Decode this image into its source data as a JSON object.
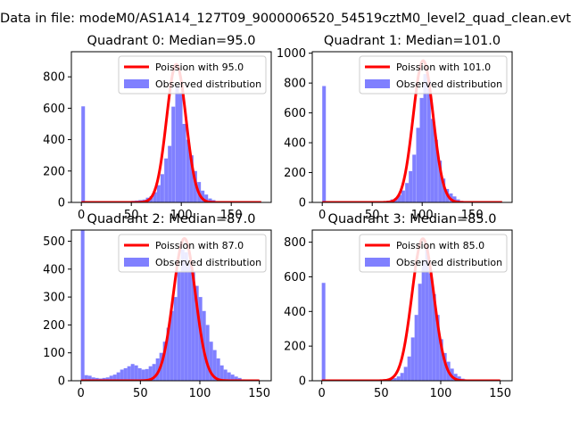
{
  "figure": {
    "suptitle": "Data in file: modeM0/AS1A14_127T09_9000006520_54519cztM0_level2_quad_clean.evt"
  },
  "chart_data": [
    {
      "type": "bar",
      "title": "Quadrant 0: Median=95.0",
      "xlim": [
        -10,
        190
      ],
      "ylim": [
        0,
        960
      ],
      "xticks": [
        0,
        50,
        100,
        150
      ],
      "yticks": [
        0,
        200,
        400,
        600,
        800
      ],
      "legend": {
        "position": "top-right",
        "entries": [
          "Poission with 95.0",
          "Observed distribution"
        ]
      },
      "colors": {
        "hist": "#8080ff",
        "fit": "#ff0000"
      },
      "hist_bin_width": 3.6,
      "hist_bins": [
        [
          0,
          612
        ],
        [
          3.6,
          3
        ],
        [
          7.2,
          2
        ],
        [
          50,
          10
        ],
        [
          53.6,
          12
        ],
        [
          57.2,
          15
        ],
        [
          61,
          18
        ],
        [
          64.6,
          30
        ],
        [
          68.2,
          40
        ],
        [
          72,
          65
        ],
        [
          75.6,
          110
        ],
        [
          79.2,
          180
        ],
        [
          83,
          280
        ],
        [
          86.6,
          360
        ],
        [
          90.2,
          610
        ],
        [
          94,
          740
        ],
        [
          97.6,
          700
        ],
        [
          101.2,
          500
        ],
        [
          105,
          400
        ],
        [
          108.6,
          300
        ],
        [
          112.2,
          200
        ],
        [
          116,
          130
        ],
        [
          119.6,
          75
        ],
        [
          123.2,
          50
        ],
        [
          127,
          25
        ],
        [
          130.6,
          15
        ],
        [
          134.2,
          8
        ],
        [
          138,
          5
        ]
      ],
      "poisson_mu": 95.0,
      "poisson_peak": 880,
      "fit_range": [
        0,
        180
      ],
      "hist_range_end": 180
    },
    {
      "type": "bar",
      "title": "Quadrant 1: Median=101.0",
      "xlim": [
        -10,
        190
      ],
      "ylim": [
        0,
        1010
      ],
      "xticks": [
        0,
        50,
        100,
        150
      ],
      "yticks": [
        0,
        200,
        400,
        600,
        800,
        1000
      ],
      "legend": {
        "position": "top-right",
        "entries": [
          "Poission with 101.0",
          "Observed distribution"
        ]
      },
      "colors": {
        "hist": "#8080ff",
        "fit": "#ff0000"
      },
      "hist_bin_width": 3.6,
      "hist_bins": [
        [
          0,
          780
        ],
        [
          61,
          5
        ],
        [
          64.6,
          12
        ],
        [
          68.2,
          20
        ],
        [
          72,
          30
        ],
        [
          75.6,
          50
        ],
        [
          79.2,
          80
        ],
        [
          83,
          130
        ],
        [
          86.6,
          210
        ],
        [
          90.2,
          320
        ],
        [
          94,
          500
        ],
        [
          97.6,
          700
        ],
        [
          101.2,
          860
        ],
        [
          105,
          820
        ],
        [
          108.6,
          560
        ],
        [
          112.2,
          420
        ],
        [
          116,
          280
        ],
        [
          119.6,
          160
        ],
        [
          123.2,
          90
        ],
        [
          127,
          60
        ],
        [
          130.6,
          40
        ],
        [
          134.2,
          20
        ],
        [
          138,
          10
        ],
        [
          141.6,
          5
        ]
      ],
      "poisson_mu": 101.0,
      "poisson_peak": 950,
      "fit_range": [
        0,
        180
      ],
      "hist_range_end": 180
    },
    {
      "type": "bar",
      "title": "Quadrant 2: Median=87.0",
      "xlim": [
        -8,
        160
      ],
      "ylim": [
        0,
        540
      ],
      "xticks": [
        0,
        50,
        100,
        150
      ],
      "yticks": [
        0,
        100,
        200,
        300,
        400,
        500
      ],
      "legend": {
        "position": "top-right",
        "entries": [
          "Poission with 87.0",
          "Observed distribution"
        ]
      },
      "colors": {
        "hist": "#8080ff",
        "fit": "#ff0000"
      },
      "hist_bin_width": 3.0,
      "hist_bins": [
        [
          0,
          540
        ],
        [
          3,
          20
        ],
        [
          6,
          18
        ],
        [
          9,
          12
        ],
        [
          12,
          10
        ],
        [
          15,
          8
        ],
        [
          18,
          10
        ],
        [
          21,
          12
        ],
        [
          24,
          18
        ],
        [
          27,
          22
        ],
        [
          30,
          30
        ],
        [
          33,
          40
        ],
        [
          36,
          45
        ],
        [
          39,
          52
        ],
        [
          42,
          60
        ],
        [
          45,
          55
        ],
        [
          48,
          45
        ],
        [
          51,
          40
        ],
        [
          54,
          42
        ],
        [
          57,
          52
        ],
        [
          60,
          60
        ],
        [
          63,
          80
        ],
        [
          66,
          100
        ],
        [
          69,
          140
        ],
        [
          72,
          190
        ],
        [
          75,
          250
        ],
        [
          78,
          300
        ],
        [
          81,
          390
        ],
        [
          84,
          470
        ],
        [
          87,
          460
        ],
        [
          90,
          420
        ],
        [
          93,
          390
        ],
        [
          96,
          340
        ],
        [
          99,
          300
        ],
        [
          102,
          250
        ],
        [
          105,
          200
        ],
        [
          108,
          140
        ],
        [
          111,
          110
        ],
        [
          114,
          80
        ],
        [
          117,
          55
        ],
        [
          120,
          40
        ],
        [
          123,
          30
        ],
        [
          126,
          22
        ],
        [
          129,
          15
        ],
        [
          132,
          10
        ],
        [
          135,
          5
        ]
      ],
      "poisson_mu": 87.0,
      "poisson_peak": 510,
      "fit_range": [
        0,
        150
      ],
      "hist_range_end": 150
    },
    {
      "type": "bar",
      "title": "Quadrant 3: Median=85.0",
      "xlim": [
        -8,
        160
      ],
      "ylim": [
        0,
        870
      ],
      "xticks": [
        0,
        50,
        100,
        150
      ],
      "yticks": [
        0,
        200,
        400,
        600,
        800
      ],
      "legend": {
        "position": "top-right",
        "entries": [
          "Poission with 85.0",
          "Observed distribution"
        ]
      },
      "colors": {
        "hist": "#8080ff",
        "fit": "#ff0000"
      },
      "hist_bin_width": 3.0,
      "hist_bins": [
        [
          0,
          565
        ],
        [
          3,
          3
        ],
        [
          54,
          5
        ],
        [
          57,
          10
        ],
        [
          60,
          15
        ],
        [
          63,
          25
        ],
        [
          66,
          45
        ],
        [
          69,
          80
        ],
        [
          72,
          140
        ],
        [
          75,
          250
        ],
        [
          78,
          380
        ],
        [
          81,
          560
        ],
        [
          84,
          700
        ],
        [
          87,
          780
        ],
        [
          90,
          620
        ],
        [
          93,
          500
        ],
        [
          96,
          380
        ],
        [
          99,
          240
        ],
        [
          102,
          160
        ],
        [
          105,
          110
        ],
        [
          108,
          70
        ],
        [
          111,
          40
        ],
        [
          114,
          25
        ],
        [
          117,
          12
        ],
        [
          120,
          6
        ],
        [
          123,
          3
        ]
      ],
      "poisson_mu": 85.0,
      "poisson_peak": 820,
      "fit_range": [
        0,
        150
      ],
      "hist_range_end": 150
    }
  ]
}
